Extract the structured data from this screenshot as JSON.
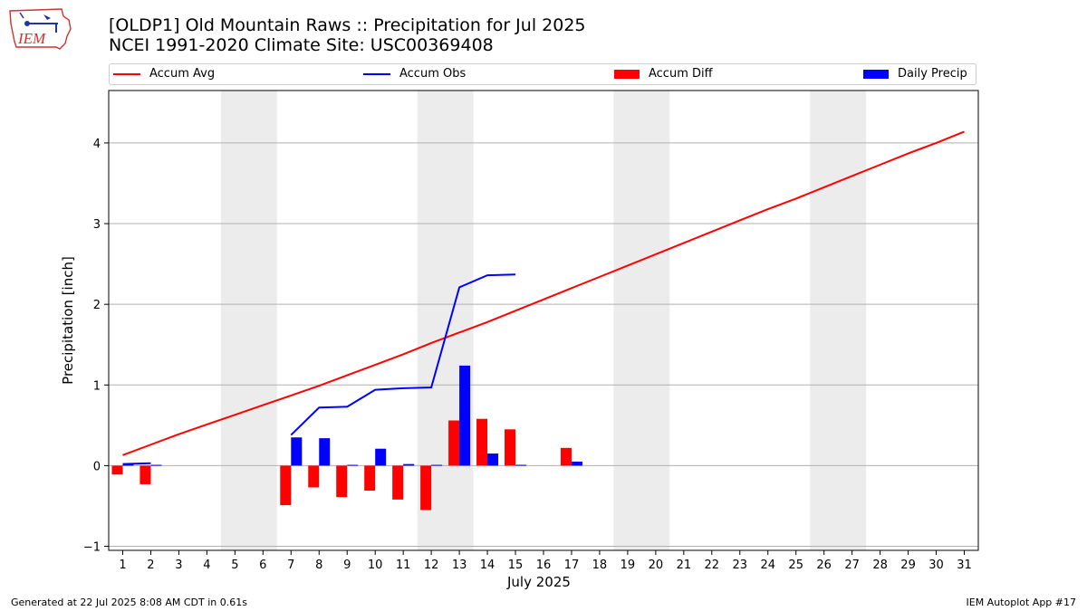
{
  "header": {
    "title_line1": "[OLDP1] Old Mountain Raws :: Precipitation for Jul 2025",
    "title_line2": "NCEI 1991-2020 Climate Site: USC00369408",
    "logo_text": "IEM"
  },
  "footer": {
    "generated": "Generated at 22 Jul 2025 8:08 AM CDT in 0.61s",
    "app": "IEM Autoplot App #17"
  },
  "legend": [
    {
      "label": "Accum Avg",
      "kind": "line",
      "color": "#ff0000"
    },
    {
      "label": "Accum Obs",
      "kind": "line",
      "color": "#0000ff"
    },
    {
      "label": "Accum Diff",
      "kind": "bar",
      "color": "#ff0000"
    },
    {
      "label": "Daily Precip",
      "kind": "bar",
      "color": "#0000ff"
    }
  ],
  "chart_data": {
    "type": "bar",
    "xlabel": "July 2025",
    "ylabel": "Precipitation [inch]",
    "xlim": [
      0.5,
      31.5
    ],
    "ylim": [
      -1.05,
      4.65
    ],
    "x_ticks": [
      1,
      2,
      3,
      4,
      5,
      6,
      7,
      8,
      9,
      10,
      11,
      12,
      13,
      14,
      15,
      16,
      17,
      18,
      19,
      20,
      21,
      22,
      23,
      24,
      25,
      26,
      27,
      28,
      29,
      30,
      31
    ],
    "y_ticks": [
      -1,
      0,
      1,
      2,
      3,
      4
    ],
    "grid": "horizontal",
    "weekend_shading": [
      [
        4.5,
        6.5
      ],
      [
        11.5,
        13.5
      ],
      [
        18.5,
        20.5
      ],
      [
        25.5,
        27.5
      ]
    ],
    "colors": {
      "accum_avg": "#ff0000",
      "accum_obs": "#0000ff",
      "accum_diff": "#ff0000",
      "daily_precip": "#0000ff",
      "shade": "#ececec",
      "grid": "#b0b0b0"
    },
    "series": [
      {
        "name": "Accum Avg",
        "kind": "line",
        "x": [
          1,
          2,
          3,
          4,
          5,
          6,
          7,
          8,
          9,
          10,
          11,
          12,
          13,
          14,
          15,
          16,
          17,
          18,
          19,
          20,
          21,
          22,
          23,
          24,
          25,
          26,
          27,
          28,
          29,
          30,
          31
        ],
        "values": [
          0.13,
          0.26,
          0.39,
          0.51,
          0.63,
          0.75,
          0.87,
          0.99,
          1.12,
          1.25,
          1.38,
          1.52,
          1.65,
          1.78,
          1.92,
          2.06,
          2.2,
          2.34,
          2.48,
          2.62,
          2.76,
          2.9,
          3.04,
          3.18,
          3.31,
          3.45,
          3.59,
          3.73,
          3.87,
          4.0,
          4.14
        ]
      },
      {
        "name": "Accum Obs",
        "kind": "line",
        "x": [
          1,
          2,
          7,
          8,
          9,
          10,
          11,
          12,
          13,
          14,
          15
        ],
        "values": [
          0.02,
          0.03,
          0.38,
          0.72,
          0.73,
          0.94,
          0.96,
          0.97,
          2.21,
          2.36,
          2.37
        ],
        "segments": [
          [
            0,
            1
          ],
          [
            2,
            10
          ]
        ]
      },
      {
        "name": "Accum Diff",
        "kind": "bar",
        "x": [
          1,
          2,
          7,
          8,
          9,
          10,
          11,
          12,
          13,
          14,
          15,
          17
        ],
        "values": [
          -0.11,
          -0.23,
          -0.49,
          -0.27,
          -0.39,
          -0.31,
          -0.42,
          -0.55,
          0.56,
          0.58,
          0.45,
          0.22
        ]
      },
      {
        "name": "Daily Precip",
        "kind": "bar",
        "x": [
          1,
          2,
          7,
          8,
          9,
          10,
          11,
          12,
          13,
          14,
          15,
          17
        ],
        "values": [
          0.02,
          0.01,
          0.35,
          0.34,
          0.01,
          0.21,
          0.02,
          0.01,
          1.24,
          0.15,
          0.01,
          0.05
        ]
      }
    ]
  }
}
